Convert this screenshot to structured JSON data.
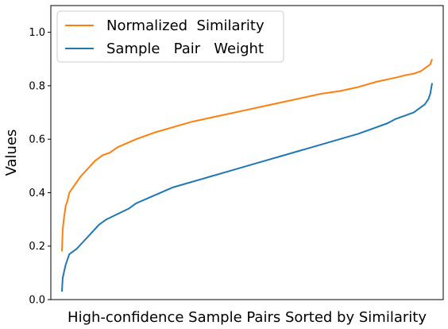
{
  "chart_data": {
    "type": "line",
    "title": "",
    "xlabel": "High-confidence Sample Pairs Sorted by Similarity",
    "ylabel": "Values",
    "xlim": [
      -0.03,
      1.03
    ],
    "ylim": [
      0.0,
      1.1
    ],
    "x_ticks_shown": false,
    "y_ticks": [
      0.0,
      0.2,
      0.4,
      0.6,
      0.8,
      1.0
    ],
    "y_tick_labels": [
      "0.0",
      "0.2",
      "0.4",
      "0.6",
      "0.8",
      "1.0"
    ],
    "grid": false,
    "legend_position": "upper-left",
    "series": [
      {
        "name": "Normalized  Similarity",
        "color": "#ff7f0e",
        "x": [
          0.0,
          0.002,
          0.005,
          0.01,
          0.015,
          0.02,
          0.03,
          0.05,
          0.07,
          0.09,
          0.11,
          0.13,
          0.15,
          0.2,
          0.25,
          0.3,
          0.35,
          0.4,
          0.45,
          0.5,
          0.55,
          0.6,
          0.65,
          0.7,
          0.75,
          0.8,
          0.85,
          0.9,
          0.93,
          0.95,
          0.96,
          0.97,
          0.98,
          0.99,
          0.995,
          1.0
        ],
        "y": [
          0.18,
          0.26,
          0.3,
          0.35,
          0.37,
          0.4,
          0.42,
          0.46,
          0.49,
          0.52,
          0.54,
          0.55,
          0.57,
          0.6,
          0.625,
          0.645,
          0.665,
          0.68,
          0.695,
          0.71,
          0.725,
          0.74,
          0.755,
          0.77,
          0.78,
          0.795,
          0.815,
          0.83,
          0.84,
          0.845,
          0.85,
          0.855,
          0.865,
          0.875,
          0.88,
          0.9
        ]
      },
      {
        "name": "Sample   Pair   Weight",
        "color": "#1f77b4",
        "x": [
          0.0,
          0.002,
          0.005,
          0.01,
          0.015,
          0.02,
          0.04,
          0.06,
          0.08,
          0.1,
          0.12,
          0.15,
          0.18,
          0.2,
          0.25,
          0.3,
          0.35,
          0.4,
          0.45,
          0.5,
          0.55,
          0.6,
          0.65,
          0.7,
          0.75,
          0.8,
          0.85,
          0.88,
          0.9,
          0.92,
          0.94,
          0.95,
          0.96,
          0.97,
          0.98,
          0.99,
          0.995,
          1.0
        ],
        "y": [
          0.03,
          0.08,
          0.1,
          0.13,
          0.15,
          0.17,
          0.19,
          0.22,
          0.25,
          0.28,
          0.3,
          0.32,
          0.34,
          0.36,
          0.39,
          0.42,
          0.44,
          0.46,
          0.48,
          0.5,
          0.52,
          0.54,
          0.56,
          0.58,
          0.6,
          0.62,
          0.645,
          0.66,
          0.675,
          0.685,
          0.695,
          0.7,
          0.71,
          0.72,
          0.73,
          0.75,
          0.77,
          0.81
        ]
      }
    ]
  }
}
